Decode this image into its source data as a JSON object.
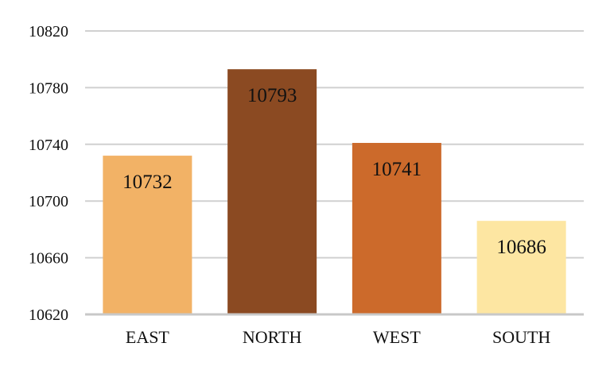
{
  "chart_data": {
    "type": "bar",
    "title": "",
    "xlabel": "",
    "ylabel": "",
    "categories": [
      "EAST",
      "NORTH",
      "WEST",
      "SOUTH"
    ],
    "values": [
      10732,
      10793,
      10741,
      10686
    ],
    "data_labels": [
      "10732",
      "10793",
      "10741",
      "10686"
    ],
    "colors": [
      "#F2B266",
      "#8B4A22",
      "#CC6A2B",
      "#FDE6A2"
    ],
    "ylim": [
      10620,
      10820
    ],
    "yticks": [
      10620,
      10660,
      10700,
      10740,
      10780,
      10820
    ],
    "ytick_labels": [
      "10620",
      "10660",
      "10700",
      "10740",
      "10780",
      "10820"
    ],
    "grid": true,
    "legend": "none"
  }
}
